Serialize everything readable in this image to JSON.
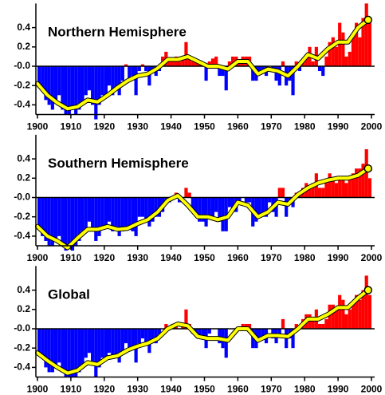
{
  "chart_data": [
    {
      "type": "bar",
      "title": "Northern Hemisphere",
      "x": [
        1900,
        1901,
        1902,
        1903,
        1904,
        1905,
        1906,
        1907,
        1908,
        1909,
        1910,
        1911,
        1912,
        1913,
        1914,
        1915,
        1916,
        1917,
        1918,
        1919,
        1920,
        1921,
        1922,
        1923,
        1924,
        1925,
        1926,
        1927,
        1928,
        1929,
        1930,
        1931,
        1932,
        1933,
        1934,
        1935,
        1936,
        1937,
        1938,
        1939,
        1940,
        1941,
        1942,
        1943,
        1944,
        1945,
        1946,
        1947,
        1948,
        1949,
        1950,
        1951,
        1952,
        1953,
        1954,
        1955,
        1956,
        1957,
        1958,
        1959,
        1960,
        1961,
        1962,
        1963,
        1964,
        1965,
        1966,
        1967,
        1968,
        1969,
        1970,
        1971,
        1972,
        1973,
        1974,
        1975,
        1976,
        1977,
        1978,
        1979,
        1980,
        1981,
        1982,
        1983,
        1984,
        1985,
        1986,
        1987,
        1988,
        1989,
        1990,
        1991,
        1992,
        1993,
        1994,
        1995,
        1996,
        1997,
        1998,
        1999
      ],
      "values": [
        -0.2,
        -0.25,
        -0.35,
        -0.4,
        -0.45,
        -0.35,
        -0.3,
        -0.45,
        -0.5,
        -0.5,
        -0.45,
        -0.5,
        -0.45,
        -0.4,
        -0.3,
        -0.25,
        -0.4,
        -0.55,
        -0.4,
        -0.3,
        -0.3,
        -0.2,
        -0.3,
        -0.25,
        -0.3,
        -0.15,
        0.02,
        -0.15,
        -0.1,
        -0.3,
        -0.05,
        0.02,
        -0.05,
        -0.2,
        -0.05,
        -0.1,
        -0.05,
        0.1,
        0.15,
        0.05,
        0.05,
        0.1,
        0.05,
        0.1,
        0.25,
        0.1,
        0.05,
        0.05,
        0.03,
        0.0,
        -0.15,
        0.05,
        0.08,
        0.1,
        -0.1,
        -0.1,
        -0.25,
        0.05,
        0.1,
        0.1,
        0.05,
        0.1,
        0.1,
        0.1,
        -0.15,
        -0.15,
        -0.05,
        -0.05,
        -0.1,
        0.0,
        -0.05,
        -0.15,
        -0.2,
        0.05,
        -0.2,
        -0.15,
        -0.3,
        0.05,
        -0.05,
        0.05,
        0.1,
        0.2,
        0.05,
        0.2,
        -0.05,
        -0.1,
        0.1,
        0.25,
        0.3,
        0.2,
        0.45,
        0.35,
        0.1,
        0.15,
        0.3,
        0.45,
        0.3,
        0.5,
        0.65,
        0.45
      ],
      "colors": {
        "positive": "#ff0000",
        "negative": "#0000ff"
      },
      "smooth": {
        "color": "#ffff00",
        "x": [
          1900,
          1903,
          1906,
          1909,
          1912,
          1915,
          1918,
          1921,
          1924,
          1927,
          1930,
          1933,
          1936,
          1939,
          1942,
          1945,
          1948,
          1951,
          1954,
          1957,
          1960,
          1963,
          1966,
          1969,
          1972,
          1975,
          1978,
          1981,
          1984,
          1987,
          1990,
          1993,
          1996,
          1999
        ],
        "values": [
          -0.18,
          -0.3,
          -0.38,
          -0.44,
          -0.42,
          -0.35,
          -0.37,
          -0.3,
          -0.22,
          -0.15,
          -0.1,
          -0.08,
          -0.02,
          0.07,
          0.07,
          0.1,
          0.05,
          0.0,
          0.0,
          -0.03,
          0.05,
          0.05,
          -0.08,
          -0.03,
          -0.05,
          -0.1,
          0.0,
          0.12,
          0.08,
          0.18,
          0.25,
          0.25,
          0.4,
          0.48
        ]
      },
      "xlim": [
        1900,
        2000
      ],
      "xticks": [
        1900,
        1910,
        1920,
        1930,
        1940,
        1950,
        1960,
        1970,
        1980,
        1990,
        2000
      ],
      "ylim": [
        -0.5,
        0.65
      ],
      "yticks": [
        -0.4,
        -0.2,
        {
          "value": 0,
          "label": "-0.0"
        },
        0.2,
        0.4
      ]
    },
    {
      "type": "bar",
      "title": "Southern Hemisphere",
      "x": [
        1900,
        1901,
        1902,
        1903,
        1904,
        1905,
        1906,
        1907,
        1908,
        1909,
        1910,
        1911,
        1912,
        1913,
        1914,
        1915,
        1916,
        1917,
        1918,
        1919,
        1920,
        1921,
        1922,
        1923,
        1924,
        1925,
        1926,
        1927,
        1928,
        1929,
        1930,
        1931,
        1932,
        1933,
        1934,
        1935,
        1936,
        1937,
        1938,
        1939,
        1940,
        1941,
        1942,
        1943,
        1944,
        1945,
        1946,
        1947,
        1948,
        1949,
        1950,
        1951,
        1952,
        1953,
        1954,
        1955,
        1956,
        1957,
        1958,
        1959,
        1960,
        1961,
        1962,
        1963,
        1964,
        1965,
        1966,
        1967,
        1968,
        1969,
        1970,
        1971,
        1972,
        1973,
        1974,
        1975,
        1976,
        1977,
        1978,
        1979,
        1980,
        1981,
        1982,
        1983,
        1984,
        1985,
        1986,
        1987,
        1988,
        1989,
        1990,
        1991,
        1992,
        1993,
        1994,
        1995,
        1996,
        1997,
        1998,
        1999
      ],
      "values": [
        -0.3,
        -0.4,
        -0.45,
        -0.5,
        -0.5,
        -0.45,
        -0.4,
        -0.5,
        -0.55,
        -0.5,
        -0.55,
        -0.5,
        -0.45,
        -0.35,
        -0.35,
        -0.25,
        -0.35,
        -0.45,
        -0.4,
        -0.3,
        -0.3,
        -0.25,
        -0.35,
        -0.3,
        -0.4,
        -0.35,
        -0.3,
        -0.3,
        -0.35,
        -0.4,
        -0.2,
        -0.2,
        -0.25,
        -0.3,
        -0.25,
        -0.2,
        -0.2,
        -0.15,
        -0.05,
        -0.05,
        0.0,
        0.05,
        -0.05,
        0.0,
        0.1,
        0.05,
        -0.15,
        -0.2,
        -0.25,
        -0.25,
        -0.3,
        -0.2,
        -0.2,
        -0.15,
        -0.25,
        -0.35,
        -0.35,
        -0.1,
        -0.15,
        -0.15,
        -0.05,
        0.0,
        -0.05,
        -0.05,
        -0.3,
        -0.25,
        -0.2,
        -0.2,
        -0.2,
        -0.05,
        -0.15,
        -0.2,
        0.1,
        0.1,
        -0.2,
        -0.05,
        -0.1,
        0.05,
        0.05,
        0.1,
        0.15,
        0.1,
        0.15,
        0.25,
        0.1,
        0.1,
        0.15,
        0.25,
        0.2,
        0.15,
        0.2,
        0.2,
        0.15,
        0.2,
        0.25,
        0.3,
        0.3,
        0.35,
        0.5,
        0.2
      ],
      "colors": {
        "positive": "#ff0000",
        "negative": "#0000ff"
      },
      "smooth": {
        "color": "#ffff00",
        "x": [
          1900,
          1903,
          1906,
          1909,
          1912,
          1915,
          1918,
          1921,
          1924,
          1927,
          1930,
          1933,
          1936,
          1939,
          1942,
          1945,
          1948,
          1951,
          1954,
          1957,
          1960,
          1963,
          1966,
          1969,
          1972,
          1975,
          1978,
          1981,
          1984,
          1987,
          1990,
          1993,
          1996,
          1999
        ],
        "values": [
          -0.3,
          -0.4,
          -0.45,
          -0.52,
          -0.42,
          -0.33,
          -0.33,
          -0.3,
          -0.33,
          -0.32,
          -0.27,
          -0.23,
          -0.15,
          -0.03,
          0.02,
          -0.08,
          -0.2,
          -0.2,
          -0.23,
          -0.2,
          -0.05,
          -0.08,
          -0.2,
          -0.15,
          -0.05,
          -0.07,
          0.03,
          0.1,
          0.15,
          0.18,
          0.2,
          0.2,
          0.23,
          0.3
        ]
      },
      "xlim": [
        1900,
        2000
      ],
      "xticks": [
        1900,
        1910,
        1920,
        1930,
        1940,
        1950,
        1960,
        1970,
        1980,
        1990,
        2000
      ],
      "ylim": [
        -0.5,
        0.65
      ],
      "yticks": [
        -0.4,
        -0.2,
        {
          "value": 0,
          "label": "-0.0"
        },
        0.2,
        0.4
      ]
    },
    {
      "type": "bar",
      "title": "Global",
      "x": [
        1900,
        1901,
        1902,
        1903,
        1904,
        1905,
        1906,
        1907,
        1908,
        1909,
        1910,
        1911,
        1912,
        1913,
        1914,
        1915,
        1916,
        1917,
        1918,
        1919,
        1920,
        1921,
        1922,
        1923,
        1924,
        1925,
        1926,
        1927,
        1928,
        1929,
        1930,
        1931,
        1932,
        1933,
        1934,
        1935,
        1936,
        1937,
        1938,
        1939,
        1940,
        1941,
        1942,
        1943,
        1944,
        1945,
        1946,
        1947,
        1948,
        1949,
        1950,
        1951,
        1952,
        1953,
        1954,
        1955,
        1956,
        1957,
        1958,
        1959,
        1960,
        1961,
        1962,
        1963,
        1964,
        1965,
        1966,
        1967,
        1968,
        1969,
        1970,
        1971,
        1972,
        1973,
        1974,
        1975,
        1976,
        1977,
        1978,
        1979,
        1980,
        1981,
        1982,
        1983,
        1984,
        1985,
        1986,
        1987,
        1988,
        1989,
        1990,
        1991,
        1992,
        1993,
        1994,
        1995,
        1996,
        1997,
        1998,
        1999
      ],
      "values": [
        -0.25,
        -0.3,
        -0.4,
        -0.45,
        -0.45,
        -0.4,
        -0.35,
        -0.45,
        -0.5,
        -0.5,
        -0.5,
        -0.5,
        -0.45,
        -0.4,
        -0.3,
        -0.25,
        -0.35,
        -0.5,
        -0.4,
        -0.3,
        -0.3,
        -0.25,
        -0.3,
        -0.3,
        -0.35,
        -0.25,
        -0.15,
        -0.2,
        -0.2,
        -0.35,
        -0.15,
        -0.1,
        -0.15,
        -0.25,
        -0.15,
        -0.15,
        -0.1,
        0.0,
        0.05,
        0.0,
        0.05,
        0.05,
        0.0,
        0.05,
        0.2,
        0.05,
        -0.05,
        -0.05,
        -0.1,
        -0.1,
        -0.2,
        -0.05,
        0.0,
        0.0,
        -0.15,
        -0.2,
        -0.3,
        0.0,
        0.0,
        0.0,
        0.0,
        0.05,
        0.05,
        0.05,
        -0.2,
        -0.2,
        -0.1,
        -0.1,
        -0.15,
        0.0,
        -0.1,
        -0.15,
        -0.05,
        0.1,
        -0.2,
        -0.1,
        -0.2,
        0.05,
        0.0,
        0.1,
        0.15,
        0.15,
        0.1,
        0.2,
        0.05,
        0.05,
        0.1,
        0.25,
        0.25,
        0.2,
        0.35,
        0.3,
        0.15,
        0.2,
        0.25,
        0.35,
        0.3,
        0.4,
        0.55,
        0.35
      ],
      "colors": {
        "positive": "#ff0000",
        "negative": "#0000ff"
      },
      "smooth": {
        "color": "#ffff00",
        "x": [
          1900,
          1903,
          1906,
          1909,
          1912,
          1915,
          1918,
          1921,
          1924,
          1927,
          1930,
          1933,
          1936,
          1939,
          1942,
          1945,
          1948,
          1951,
          1954,
          1957,
          1960,
          1963,
          1966,
          1969,
          1972,
          1975,
          1978,
          1981,
          1984,
          1987,
          1990,
          1993,
          1996,
          1999
        ],
        "values": [
          -0.25,
          -0.33,
          -0.4,
          -0.46,
          -0.43,
          -0.35,
          -0.37,
          -0.3,
          -0.28,
          -0.22,
          -0.18,
          -0.15,
          -0.1,
          0.0,
          0.05,
          0.03,
          -0.08,
          -0.1,
          -0.1,
          -0.12,
          0.0,
          0.0,
          -0.12,
          -0.07,
          -0.07,
          -0.08,
          0.0,
          0.1,
          0.1,
          0.15,
          0.22,
          0.22,
          0.32,
          0.4
        ]
      },
      "xlim": [
        1900,
        2000
      ],
      "xticks": [
        1900,
        1910,
        1920,
        1930,
        1940,
        1950,
        1960,
        1970,
        1980,
        1990,
        2000
      ],
      "ylim": [
        -0.5,
        0.65
      ],
      "yticks": [
        -0.4,
        -0.2,
        {
          "value": 0,
          "label": "-0.0"
        },
        0.2,
        0.4
      ]
    }
  ]
}
